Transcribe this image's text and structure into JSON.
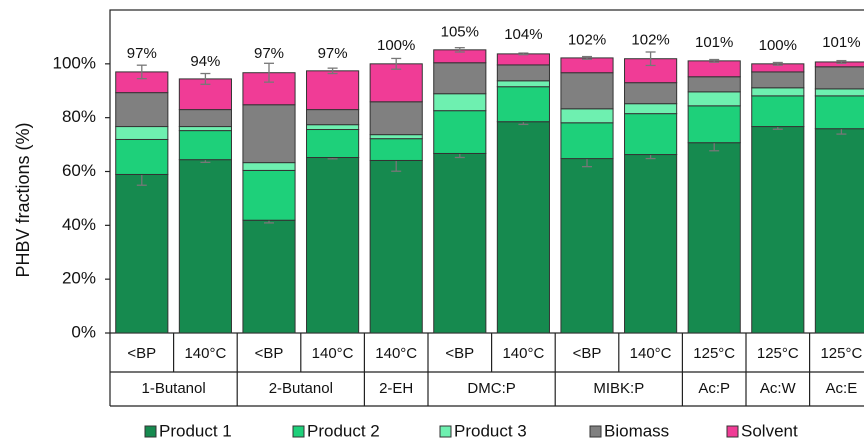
{
  "chart_data": {
    "type": "stacked_bar",
    "y_label": "PHBV fractions (%)",
    "categories": [
      "<BP",
      "140°C",
      "<BP",
      "140°C",
      "140°C",
      "<BP",
      "140°C",
      "<BP",
      "140°C",
      "125°C",
      "125°C",
      "125°C"
    ],
    "groups": [
      {
        "name": "1-Butanol",
        "span": 2
      },
      {
        "name": "2-Butanol",
        "span": 2
      },
      {
        "name": "2-EH",
        "span": 1
      },
      {
        "name": "DMC:P",
        "span": 2
      },
      {
        "name": "MIBK:P",
        "span": 2
      },
      {
        "name": "Ac:P",
        "span": 1
      },
      {
        "name": "Ac:W",
        "span": 1
      },
      {
        "name": "Ac:E",
        "span": 1
      }
    ],
    "series": [
      {
        "name": "Product 1",
        "color": "#168a4f",
        "values": [
          58.9,
          64.4,
          41.9,
          65.2,
          64.1,
          66.7,
          78.5,
          64.8,
          66.3,
          70.7,
          76.7,
          75.9
        ],
        "errors": [
          4,
          1,
          1,
          0.5,
          4,
          1.5,
          1,
          3,
          1.5,
          3,
          1,
          2
        ]
      },
      {
        "name": "Product 2",
        "color": "#1ed07a",
        "values": [
          13,
          10.8,
          18.5,
          10.4,
          8.1,
          15.9,
          13,
          13.3,
          15.2,
          13.7,
          11.4,
          12.2
        ]
      },
      {
        "name": "Product 3",
        "color": "#6ef0b0",
        "values": [
          4.8,
          1.5,
          2.9,
          1.8,
          1.5,
          6.3,
          2.2,
          5.2,
          3.7,
          5.2,
          3,
          2.6
        ]
      },
      {
        "name": "Biomass",
        "color": "#808080",
        "values": [
          12.6,
          6.3,
          21.5,
          5.6,
          12.2,
          11.5,
          5.9,
          13.4,
          7.8,
          5.6,
          5.9,
          8.2
        ]
      },
      {
        "name": "Solvent",
        "color": "#f03c96",
        "values": [
          7.7,
          11.4,
          11.9,
          14.4,
          14.1,
          4.8,
          4.1,
          5.5,
          8.9,
          5.9,
          3,
          1.8
        ],
        "errors": [
          2.5,
          2,
          3.5,
          1,
          2,
          0.8,
          0.3,
          0.5,
          2.5,
          0.5,
          0.5,
          0.5
        ]
      }
    ],
    "totals": [
      97,
      94,
      97,
      97,
      100,
      105,
      104,
      102,
      102,
      101,
      100,
      101
    ],
    "total_labels": [
      "97%",
      "94%",
      "97%",
      "97%",
      "100%",
      "105%",
      "104%",
      "102%",
      "102%",
      "101%",
      "100%",
      "101%"
    ],
    "ylim": [
      0,
      120
    ],
    "yticks": [
      {
        "value": 0,
        "label": "0%"
      },
      {
        "value": 20,
        "label": "20%"
      },
      {
        "value": 40,
        "label": "40%"
      },
      {
        "value": 60,
        "label": "60%"
      },
      {
        "value": 80,
        "label": "80%"
      },
      {
        "value": 100,
        "label": "100%"
      }
    ],
    "legend": "bottom"
  }
}
